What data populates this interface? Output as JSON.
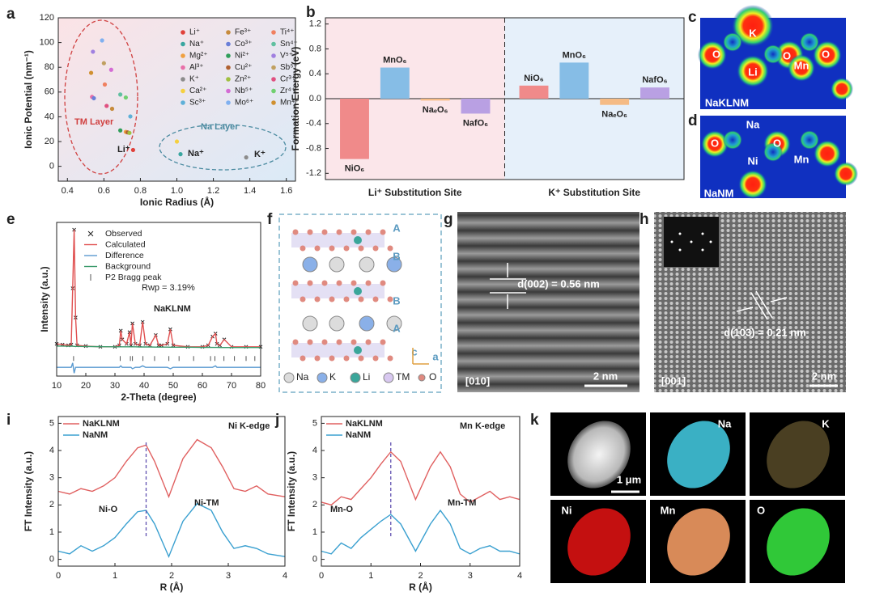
{
  "chart_data": [
    {
      "panel": "a",
      "type": "scatter",
      "xlabel": "Ionic Radius (Å)",
      "ylabel": "Ionic Potential (nm⁻¹)",
      "xlim": [
        0.35,
        1.65
      ],
      "ylim": [
        -12,
        120
      ],
      "xticks": [
        0.4,
        0.6,
        0.8,
        {
          "value": 1,
          "label": "1.0"
        },
        1.2,
        1.4,
        1.6
      ],
      "yticks": [
        0,
        20,
        40,
        60,
        80,
        100,
        120
      ],
      "annotations": [
        "TM Layer",
        "Na Layer",
        "Li⁺",
        "Na⁺",
        "K⁺"
      ],
      "series": [
        {
          "name": "Li⁺",
          "color": "#e0403a",
          "x": [
            0.76
          ],
          "values": [
            13.2
          ]
        },
        {
          "name": "Na⁺",
          "color": "#3aa6a0",
          "x": [
            1.02
          ],
          "values": [
            9.8
          ]
        },
        {
          "name": "Mg²⁺",
          "color": "#f0a040",
          "x": [
            0.72
          ],
          "values": [
            27.8
          ]
        },
        {
          "name": "Al³⁺",
          "color": "#e86fa8",
          "x": [
            0.535
          ],
          "values": [
            56.1
          ]
        },
        {
          "name": "K⁺",
          "color": "#8c8c8c",
          "x": [
            1.38
          ],
          "values": [
            7.2
          ]
        },
        {
          "name": "Ca²⁺",
          "color": "#f5d040",
          "x": [
            1.0
          ],
          "values": [
            20
          ]
        },
        {
          "name": "Sc³⁺",
          "color": "#5fb0d8",
          "x": [
            0.745
          ],
          "values": [
            40.3
          ]
        },
        {
          "name": "Fe³⁺",
          "color": "#c78b3c",
          "x": [
            0.645
          ],
          "values": [
            46.5
          ]
        },
        {
          "name": "Co³⁺",
          "color": "#6a7fd8",
          "x": [
            0.545
          ],
          "values": [
            55
          ]
        },
        {
          "name": "Ni²⁺",
          "color": "#2f9e5a",
          "x": [
            0.69
          ],
          "values": [
            29
          ]
        },
        {
          "name": "Cu²⁺",
          "color": "#b06030",
          "x": [
            0.73
          ],
          "values": [
            27.4
          ]
        },
        {
          "name": "Zn²⁺",
          "color": "#a0c040",
          "x": [
            0.74
          ],
          "values": [
            27
          ]
        },
        {
          "name": "Nb⁵⁺",
          "color": "#d46cd4",
          "x": [
            0.64
          ],
          "values": [
            78
          ]
        },
        {
          "name": "Mo⁶⁺",
          "color": "#80b0f0",
          "x": [
            0.59
          ],
          "values": [
            101.7
          ]
        },
        {
          "name": "Ti⁴⁺",
          "color": "#f08060",
          "x": [
            0.605
          ],
          "values": [
            66.1
          ]
        },
        {
          "name": "Sn⁴⁺",
          "color": "#60c0a0",
          "x": [
            0.69
          ],
          "values": [
            58
          ]
        },
        {
          "name": "V⁵⁺",
          "color": "#a080e0",
          "x": [
            0.54
          ],
          "values": [
            92.6
          ]
        },
        {
          "name": "Sb⁵⁺",
          "color": "#c0a060",
          "x": [
            0.6
          ],
          "values": [
            83.3
          ]
        },
        {
          "name": "Cr³⁺",
          "color": "#e05080",
          "x": [
            0.615
          ],
          "values": [
            48.8
          ]
        },
        {
          "name": "Zr⁴⁺",
          "color": "#70d070",
          "x": [
            0.72
          ],
          "values": [
            55.6
          ]
        },
        {
          "name": "Mn⁴⁺",
          "color": "#d09030",
          "x": [
            0.53
          ],
          "values": [
            75.5
          ]
        }
      ]
    },
    {
      "panel": "b",
      "type": "bar",
      "ylabel": "Formation Energy (eV)",
      "ylim": [
        -1.3,
        1.3
      ],
      "yticks": [
        -1.2,
        -0.8,
        -0.4,
        {
          "value": 0,
          "label": "0.0"
        },
        0.4,
        0.8,
        1.2
      ],
      "categories": [
        "NiO₆",
        "MnO₆",
        "NaₑO₆",
        "NafO₆"
      ],
      "colors": [
        "#f08a8a",
        "#86bde6",
        "#f5bb85",
        "#b9a0e3"
      ],
      "series": [
        {
          "name": "Li⁺ Substitution Site",
          "values": [
            -0.97,
            0.5,
            -0.03,
            -0.24
          ]
        },
        {
          "name": "K⁺ Substitution Site",
          "values": [
            0.21,
            0.58,
            -0.1,
            0.18
          ]
        }
      ]
    },
    {
      "panel": "e",
      "type": "line",
      "xlabel": "2-Theta (degree)",
      "ylabel": "Intensity (a.u.)",
      "xlim": [
        10,
        80
      ],
      "ylim": [
        0,
        105
      ],
      "xticks": [
        10,
        20,
        30,
        40,
        50,
        60,
        70,
        80
      ],
      "annotations": [
        "Rwp = 3.19%",
        "NaKLNM"
      ],
      "x": [
        10,
        12,
        14,
        15,
        15.5,
        16,
        16.5,
        17,
        20,
        25,
        30,
        31.5,
        32,
        32.5,
        34,
        35,
        35.5,
        36,
        37,
        38.5,
        39.5,
        40.5,
        42,
        44,
        45,
        46,
        48,
        49,
        50,
        55,
        60,
        62,
        63.5,
        64.5,
        65,
        66,
        67.5,
        70,
        75,
        80
      ],
      "series": [
        {
          "name": "Observed",
          "color": "#222",
          "style": "cross",
          "values": [
            22,
            21.5,
            21,
            21.5,
            60,
            100,
            40,
            21,
            20.5,
            20,
            20,
            21,
            31,
            25,
            22,
            30,
            21,
            36,
            22,
            21,
            37,
            22,
            21,
            28,
            21,
            21,
            22,
            32,
            21,
            20,
            20,
            21,
            27,
            29,
            22,
            21,
            25,
            20,
            20,
            20
          ]
        },
        {
          "name": "Calculated",
          "color": "#e05050",
          "style": "line",
          "values": [
            22,
            21.5,
            21,
            21.5,
            60,
            100,
            40,
            21,
            20.5,
            20,
            20,
            21,
            31,
            25,
            22,
            30,
            21,
            36,
            22,
            21,
            37,
            22,
            21,
            28,
            21,
            21,
            22,
            32,
            21,
            20,
            20,
            21,
            27,
            29,
            22,
            21,
            25,
            20,
            20,
            20
          ]
        },
        {
          "name": "Difference",
          "color": "#5a9ad0",
          "style": "line",
          "values": [
            6,
            6,
            6,
            6,
            9,
            2,
            6,
            6,
            6,
            6,
            6,
            6,
            7,
            6,
            6,
            6,
            6,
            5,
            6,
            6,
            7,
            6,
            6,
            6,
            6,
            6,
            6,
            5,
            6,
            6,
            6,
            6,
            6,
            7,
            6,
            6,
            6,
            6,
            6,
            6
          ]
        },
        {
          "name": "Background",
          "color": "#3a9a6a",
          "style": "line",
          "values": [
            20.5,
            20.5,
            20.4,
            20.4,
            20.4,
            20.3,
            20.3,
            20.3,
            20.2,
            20.1,
            20,
            20,
            20,
            20,
            20,
            20,
            20,
            20,
            20,
            19.9,
            19.9,
            19.9,
            19.9,
            19.8,
            19.8,
            19.8,
            19.8,
            19.7,
            19.7,
            19.7,
            19.6,
            19.6,
            19.6,
            19.6,
            19.6,
            19.5,
            19.5,
            19.5,
            19.5,
            19.5
          ]
        },
        {
          "name": "P2 Bragg peak",
          "color": "#555",
          "style": "tick",
          "x": [
            15.8,
            31.8,
            35.3,
            36,
            39.6,
            43.6,
            48.5,
            52,
            57,
            62.8,
            64.3,
            67.4,
            71,
            75,
            78
          ],
          "values": [
            12,
            12,
            12,
            12,
            12,
            12,
            12,
            12,
            12,
            12,
            12,
            12,
            12,
            12,
            12
          ]
        }
      ]
    },
    {
      "panel": "i",
      "type": "line",
      "xlabel": "R (Å)",
      "ylabel": "FT Intensity (a.u.)",
      "xlim": [
        0,
        4
      ],
      "ylim": [
        -0.25,
        5.25
      ],
      "xticks": [
        0,
        1,
        2,
        3,
        4
      ],
      "yticks": [
        0,
        1,
        2,
        3,
        4,
        5
      ],
      "vline": 1.55,
      "annotations": [
        "Ni K-edge",
        "Ni-O",
        "Ni-TM"
      ],
      "x": [
        0,
        0.2,
        0.4,
        0.6,
        0.8,
        1.0,
        1.2,
        1.4,
        1.55,
        1.7,
        1.95,
        2.2,
        2.45,
        2.7,
        2.9,
        3.1,
        3.3,
        3.5,
        3.7,
        4.0
      ],
      "series": [
        {
          "name": "NaKLNM",
          "color": "#e06060",
          "values": [
            2.5,
            2.4,
            2.6,
            2.5,
            2.7,
            3.0,
            3.6,
            4.1,
            4.2,
            3.6,
            2.3,
            3.7,
            4.4,
            4.1,
            3.4,
            2.6,
            2.5,
            2.7,
            2.4,
            2.3
          ]
        },
        {
          "name": "NaNM",
          "color": "#3aa0d0",
          "values": [
            0.3,
            0.2,
            0.5,
            0.3,
            0.5,
            0.8,
            1.3,
            1.75,
            1.8,
            1.3,
            0.1,
            1.4,
            2.05,
            1.8,
            1.0,
            0.4,
            0.5,
            0.4,
            0.2,
            0.1
          ]
        }
      ]
    },
    {
      "panel": "j",
      "type": "line",
      "xlabel": "R (Å)",
      "ylabel": "FT Intensity (a.u.)",
      "xlim": [
        0,
        4
      ],
      "ylim": [
        -0.25,
        5.25
      ],
      "xticks": [
        0,
        1,
        2,
        3,
        4
      ],
      "yticks": [
        0,
        1,
        2,
        3,
        4,
        5
      ],
      "vline": 1.4,
      "annotations": [
        "Mn K-edge",
        "Mn-O",
        "Mn-TM"
      ],
      "x": [
        0,
        0.2,
        0.4,
        0.6,
        0.8,
        1.0,
        1.2,
        1.4,
        1.6,
        1.9,
        2.2,
        2.4,
        2.6,
        2.8,
        3.0,
        3.2,
        3.4,
        3.6,
        3.8,
        4.0
      ],
      "series": [
        {
          "name": "NaKLNM",
          "color": "#e06060",
          "values": [
            2.1,
            2.0,
            2.3,
            2.2,
            2.6,
            3.0,
            3.5,
            3.95,
            3.6,
            2.2,
            3.4,
            3.95,
            3.4,
            2.4,
            2.1,
            2.3,
            2.5,
            2.2,
            2.3,
            2.2
          ]
        },
        {
          "name": "NaNM",
          "color": "#3aa0d0",
          "values": [
            0.3,
            0.2,
            0.6,
            0.4,
            0.8,
            1.1,
            1.4,
            1.65,
            1.3,
            0.3,
            1.3,
            1.8,
            1.3,
            0.4,
            0.2,
            0.4,
            0.5,
            0.3,
            0.3,
            0.2
          ]
        }
      ]
    }
  ],
  "images": {
    "c": {
      "panel": "c",
      "labels": [
        "K",
        "O",
        "Li",
        "O",
        "Mn",
        "O",
        "NaKLNM"
      ]
    },
    "d": {
      "panel": "d",
      "labels": [
        "Na",
        "O",
        "Ni",
        "O",
        "Mn",
        "NaNM"
      ]
    },
    "f": {
      "panel": "f",
      "labels": [
        "A",
        "B",
        "B",
        "A",
        "c",
        "a"
      ],
      "legend": [
        "Na",
        "K",
        "Li",
        "TM",
        "O"
      ]
    },
    "g": {
      "panel": "g",
      "labels": [
        "d(002) = 0.56 nm",
        "[010]",
        "2 nm"
      ]
    },
    "h": {
      "panel": "h",
      "labels": [
        "d(103) = 0.21 nm",
        "[001]",
        "2 nm"
      ]
    },
    "k": {
      "panel": "k",
      "labels": [
        "1 μm",
        "Na",
        "K",
        "Ni",
        "Mn",
        "O"
      ]
    }
  }
}
